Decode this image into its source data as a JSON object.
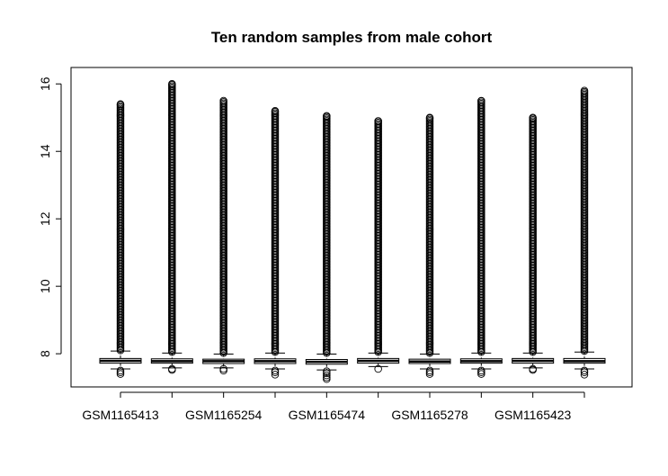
{
  "chart_data": {
    "type": "boxplot",
    "title": "Ten random samples from male cohort",
    "xlabel": "",
    "ylabel": "",
    "ylim": [
      7.15,
      16.3
    ],
    "yticks": [
      8,
      10,
      12,
      14,
      16
    ],
    "grid": false,
    "legend": "none",
    "categories": [
      "GSM1165413",
      "",
      "GSM1165254",
      "",
      "GSM1165474",
      "",
      "GSM1165278",
      "",
      "GSM1165423",
      ""
    ],
    "x_tick_labels_shown": [
      "GSM1165413",
      "GSM1165254",
      "GSM1165474",
      "GSM1165278",
      "GSM1165423"
    ],
    "series": [
      {
        "whisker_low": 7.55,
        "q1": 7.72,
        "median": 7.79,
        "q3": 7.86,
        "whisker_high": 8.08,
        "outliers_high_min": 8.1,
        "outliers_high_max": 15.4,
        "outliers_low": [
          7.5,
          7.45,
          7.4
        ]
      },
      {
        "whisker_low": 7.58,
        "q1": 7.72,
        "median": 7.78,
        "q3": 7.85,
        "whisker_high": 8.02,
        "outliers_high_min": 8.05,
        "outliers_high_max": 16.0,
        "outliers_low": [
          7.55,
          7.52
        ]
      },
      {
        "whisker_low": 7.58,
        "q1": 7.71,
        "median": 7.78,
        "q3": 7.84,
        "whisker_high": 7.99,
        "outliers_high_min": 8.02,
        "outliers_high_max": 15.5,
        "outliers_low": [
          7.55,
          7.5
        ]
      },
      {
        "whisker_low": 7.55,
        "q1": 7.71,
        "median": 7.78,
        "q3": 7.85,
        "whisker_high": 8.02,
        "outliers_high_min": 8.05,
        "outliers_high_max": 15.2,
        "outliers_low": [
          7.5,
          7.45,
          7.38
        ]
      },
      {
        "whisker_low": 7.52,
        "q1": 7.69,
        "median": 7.76,
        "q3": 7.83,
        "whisker_high": 7.99,
        "outliers_high_min": 8.02,
        "outliers_high_max": 15.05,
        "outliers_low": [
          7.48,
          7.42,
          7.36,
          7.3,
          7.25
        ]
      },
      {
        "whisker_low": 7.62,
        "q1": 7.72,
        "median": 7.79,
        "q3": 7.86,
        "whisker_high": 8.02,
        "outliers_high_min": 8.05,
        "outliers_high_max": 14.9,
        "outliers_low": [
          7.55
        ]
      },
      {
        "whisker_low": 7.55,
        "q1": 7.71,
        "median": 7.77,
        "q3": 7.84,
        "whisker_high": 7.99,
        "outliers_high_min": 8.02,
        "outliers_high_max": 15.0,
        "outliers_low": [
          7.5,
          7.45,
          7.4
        ]
      },
      {
        "whisker_low": 7.55,
        "q1": 7.72,
        "median": 7.78,
        "q3": 7.85,
        "whisker_high": 8.02,
        "outliers_high_min": 8.05,
        "outliers_high_max": 15.5,
        "outliers_low": [
          7.5,
          7.45,
          7.4
        ]
      },
      {
        "whisker_low": 7.58,
        "q1": 7.72,
        "median": 7.79,
        "q3": 7.86,
        "whisker_high": 8.02,
        "outliers_high_min": 8.05,
        "outliers_high_max": 15.0,
        "outliers_low": [
          7.55,
          7.52
        ]
      },
      {
        "whisker_low": 7.55,
        "q1": 7.72,
        "median": 7.78,
        "q3": 7.86,
        "whisker_high": 8.05,
        "outliers_high_min": 8.08,
        "outliers_high_max": 15.8,
        "outliers_low": [
          7.5,
          7.45,
          7.38
        ]
      }
    ]
  }
}
